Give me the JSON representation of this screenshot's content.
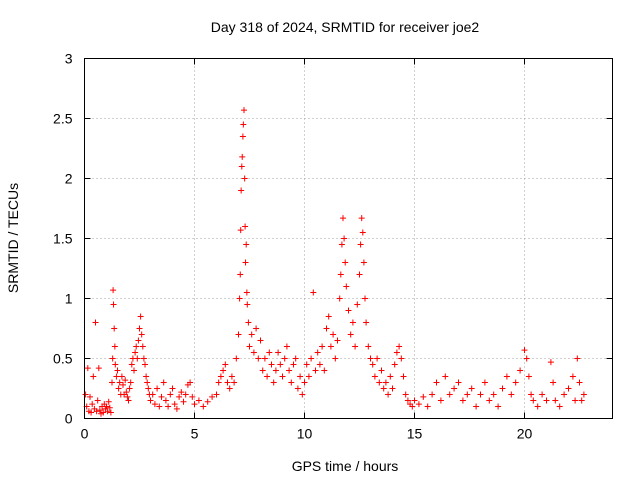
{
  "chart_data": {
    "type": "scatter",
    "title": "Day 318 of 2024, SRMTID for receiver joe2",
    "xlabel": "GPS time / hours",
    "ylabel": "SRMTID / TECUs",
    "xlim": [
      0,
      24
    ],
    "ylim": [
      0,
      3
    ],
    "xticks": [
      0,
      5,
      10,
      15,
      20
    ],
    "yticks": [
      0,
      0.5,
      1,
      1.5,
      2,
      2.5,
      3
    ],
    "xtick_labels": [
      "0",
      "5",
      "10",
      "15",
      "20"
    ],
    "ytick_labels": [
      "0",
      "0.5",
      "1",
      "1.5",
      "2",
      "2.5",
      "3"
    ],
    "grid": true,
    "marker": "+",
    "color": "#ff0000",
    "series": [
      {
        "name": "SRMTID",
        "points": [
          [
            0.05,
            0.2
          ],
          [
            0.1,
            0.1
          ],
          [
            0.15,
            0.42
          ],
          [
            0.2,
            0.06
          ],
          [
            0.25,
            0.18
          ],
          [
            0.3,
            0.05
          ],
          [
            0.35,
            0.12
          ],
          [
            0.4,
            0.35
          ],
          [
            0.45,
            0.08
          ],
          [
            0.5,
            0.8
          ],
          [
            0.55,
            0.06
          ],
          [
            0.6,
            0.15
          ],
          [
            0.65,
            0.42
          ],
          [
            0.7,
            0.07
          ],
          [
            0.75,
            0.04
          ],
          [
            0.8,
            0.1
          ],
          [
            0.85,
            0.05
          ],
          [
            0.9,
            0.12
          ],
          [
            0.95,
            0.08
          ],
          [
            1.0,
            0.1
          ],
          [
            1.05,
            0.06
          ],
          [
            1.1,
            0.14
          ],
          [
            1.15,
            0.09
          ],
          [
            1.2,
            0.05
          ],
          [
            1.25,
            0.3
          ],
          [
            1.28,
            0.5
          ],
          [
            1.3,
            1.07
          ],
          [
            1.32,
            0.95
          ],
          [
            1.35,
            0.75
          ],
          [
            1.38,
            0.6
          ],
          [
            1.4,
            0.45
          ],
          [
            1.45,
            0.35
          ],
          [
            1.5,
            0.4
          ],
          [
            1.55,
            0.25
          ],
          [
            1.6,
            0.3
          ],
          [
            1.65,
            0.2
          ],
          [
            1.7,
            0.35
          ],
          [
            1.75,
            0.28
          ],
          [
            1.8,
            0.2
          ],
          [
            1.85,
            0.32
          ],
          [
            1.9,
            0.22
          ],
          [
            1.95,
            0.18
          ],
          [
            2.0,
            0.15
          ],
          [
            2.05,
            0.25
          ],
          [
            2.1,
            0.3
          ],
          [
            2.15,
            0.45
          ],
          [
            2.2,
            0.5
          ],
          [
            2.25,
            0.4
          ],
          [
            2.3,
            0.55
          ],
          [
            2.35,
            0.6
          ],
          [
            2.4,
            0.5
          ],
          [
            2.45,
            0.65
          ],
          [
            2.5,
            0.75
          ],
          [
            2.55,
            0.85
          ],
          [
            2.6,
            0.7
          ],
          [
            2.65,
            0.6
          ],
          [
            2.7,
            0.5
          ],
          [
            2.75,
            0.45
          ],
          [
            2.8,
            0.35
          ],
          [
            2.85,
            0.3
          ],
          [
            2.9,
            0.25
          ],
          [
            2.95,
            0.2
          ],
          [
            3.0,
            0.15
          ],
          [
            3.1,
            0.2
          ],
          [
            3.2,
            0.12
          ],
          [
            3.3,
            0.25
          ],
          [
            3.4,
            0.1
          ],
          [
            3.5,
            0.18
          ],
          [
            3.6,
            0.3
          ],
          [
            3.7,
            0.15
          ],
          [
            3.8,
            0.1
          ],
          [
            3.9,
            0.2
          ],
          [
            4.0,
            0.25
          ],
          [
            4.1,
            0.12
          ],
          [
            4.2,
            0.08
          ],
          [
            4.3,
            0.18
          ],
          [
            4.4,
            0.22
          ],
          [
            4.5,
            0.14
          ],
          [
            4.6,
            0.2
          ],
          [
            4.7,
            0.28
          ],
          [
            4.8,
            0.3
          ],
          [
            4.9,
            0.18
          ],
          [
            5.0,
            0.12
          ],
          [
            5.2,
            0.15
          ],
          [
            5.4,
            0.1
          ],
          [
            5.6,
            0.14
          ],
          [
            5.8,
            0.18
          ],
          [
            6.0,
            0.2
          ],
          [
            6.1,
            0.3
          ],
          [
            6.2,
            0.35
          ],
          [
            6.3,
            0.4
          ],
          [
            6.4,
            0.45
          ],
          [
            6.5,
            0.3
          ],
          [
            6.6,
            0.25
          ],
          [
            6.7,
            0.35
          ],
          [
            6.8,
            0.3
          ],
          [
            6.9,
            0.5
          ],
          [
            7.0,
            0.7
          ],
          [
            7.05,
            1.0
          ],
          [
            7.08,
            1.2
          ],
          [
            7.1,
            1.57
          ],
          [
            7.12,
            1.9
          ],
          [
            7.15,
            2.1
          ],
          [
            7.17,
            2.18
          ],
          [
            7.2,
            2.35
          ],
          [
            7.22,
            2.45
          ],
          [
            7.25,
            2.57
          ],
          [
            7.28,
            2.0
          ],
          [
            7.3,
            1.6
          ],
          [
            7.32,
            1.3
          ],
          [
            7.35,
            1.45
          ],
          [
            7.38,
            1.05
          ],
          [
            7.4,
            0.95
          ],
          [
            7.45,
            0.8
          ],
          [
            7.5,
            0.6
          ],
          [
            7.6,
            0.7
          ],
          [
            7.7,
            0.55
          ],
          [
            7.8,
            0.75
          ],
          [
            7.9,
            0.5
          ],
          [
            8.0,
            0.65
          ],
          [
            8.1,
            0.4
          ],
          [
            8.2,
            0.5
          ],
          [
            8.3,
            0.35
          ],
          [
            8.4,
            0.55
          ],
          [
            8.5,
            0.45
          ],
          [
            8.6,
            0.3
          ],
          [
            8.7,
            0.4
          ],
          [
            8.8,
            0.55
          ],
          [
            8.9,
            0.45
          ],
          [
            9.0,
            0.35
          ],
          [
            9.1,
            0.5
          ],
          [
            9.2,
            0.6
          ],
          [
            9.3,
            0.4
          ],
          [
            9.4,
            0.3
          ],
          [
            9.5,
            0.45
          ],
          [
            9.6,
            0.5
          ],
          [
            9.7,
            0.25
          ],
          [
            9.8,
            0.35
          ],
          [
            9.9,
            0.2
          ],
          [
            10.0,
            0.3
          ],
          [
            10.1,
            0.45
          ],
          [
            10.2,
            0.35
          ],
          [
            10.3,
            0.5
          ],
          [
            10.4,
            1.05
          ],
          [
            10.5,
            0.4
          ],
          [
            10.6,
            0.55
          ],
          [
            10.7,
            0.45
          ],
          [
            10.8,
            0.6
          ],
          [
            10.9,
            0.4
          ],
          [
            11.0,
            0.75
          ],
          [
            11.1,
            0.85
          ],
          [
            11.2,
            0.6
          ],
          [
            11.3,
            0.7
          ],
          [
            11.4,
            0.5
          ],
          [
            11.5,
            0.65
          ],
          [
            11.6,
            1.0
          ],
          [
            11.65,
            1.2
          ],
          [
            11.7,
            1.45
          ],
          [
            11.75,
            1.67
          ],
          [
            11.8,
            1.5
          ],
          [
            11.85,
            1.3
          ],
          [
            11.9,
            1.1
          ],
          [
            12.0,
            0.9
          ],
          [
            12.1,
            0.7
          ],
          [
            12.2,
            0.8
          ],
          [
            12.3,
            0.6
          ],
          [
            12.4,
            0.95
          ],
          [
            12.5,
            1.2
          ],
          [
            12.55,
            1.45
          ],
          [
            12.6,
            1.67
          ],
          [
            12.65,
            1.55
          ],
          [
            12.7,
            1.3
          ],
          [
            12.75,
            1.0
          ],
          [
            12.8,
            0.8
          ],
          [
            12.9,
            0.6
          ],
          [
            13.0,
            0.5
          ],
          [
            13.1,
            0.45
          ],
          [
            13.2,
            0.35
          ],
          [
            13.3,
            0.5
          ],
          [
            13.4,
            0.3
          ],
          [
            13.5,
            0.4
          ],
          [
            13.6,
            0.25
          ],
          [
            13.7,
            0.3
          ],
          [
            13.8,
            0.2
          ],
          [
            13.9,
            0.35
          ],
          [
            14.0,
            0.25
          ],
          [
            14.1,
            0.45
          ],
          [
            14.2,
            0.55
          ],
          [
            14.3,
            0.6
          ],
          [
            14.4,
            0.5
          ],
          [
            14.5,
            0.35
          ],
          [
            14.6,
            0.2
          ],
          [
            14.7,
            0.15
          ],
          [
            14.8,
            0.12
          ],
          [
            14.9,
            0.1
          ],
          [
            15.0,
            0.15
          ],
          [
            15.2,
            0.12
          ],
          [
            15.4,
            0.18
          ],
          [
            15.6,
            0.1
          ],
          [
            15.8,
            0.2
          ],
          [
            16.0,
            0.3
          ],
          [
            16.2,
            0.15
          ],
          [
            16.4,
            0.35
          ],
          [
            16.6,
            0.2
          ],
          [
            16.8,
            0.25
          ],
          [
            17.0,
            0.3
          ],
          [
            17.2,
            0.15
          ],
          [
            17.4,
            0.2
          ],
          [
            17.6,
            0.25
          ],
          [
            17.8,
            0.1
          ],
          [
            18.0,
            0.2
          ],
          [
            18.2,
            0.3
          ],
          [
            18.4,
            0.15
          ],
          [
            18.6,
            0.2
          ],
          [
            18.8,
            0.1
          ],
          [
            19.0,
            0.25
          ],
          [
            19.2,
            0.35
          ],
          [
            19.4,
            0.2
          ],
          [
            19.6,
            0.3
          ],
          [
            19.8,
            0.4
          ],
          [
            20.0,
            0.57
          ],
          [
            20.1,
            0.5
          ],
          [
            20.2,
            0.35
          ],
          [
            20.3,
            0.2
          ],
          [
            20.4,
            0.15
          ],
          [
            20.6,
            0.1
          ],
          [
            20.8,
            0.2
          ],
          [
            21.0,
            0.15
          ],
          [
            21.2,
            0.47
          ],
          [
            21.3,
            0.3
          ],
          [
            21.4,
            0.15
          ],
          [
            21.6,
            0.1
          ],
          [
            21.8,
            0.2
          ],
          [
            22.0,
            0.25
          ],
          [
            22.2,
            0.35
          ],
          [
            22.3,
            0.15
          ],
          [
            22.4,
            0.5
          ],
          [
            22.5,
            0.3
          ],
          [
            22.6,
            0.15
          ],
          [
            22.7,
            0.2
          ]
        ]
      }
    ]
  }
}
